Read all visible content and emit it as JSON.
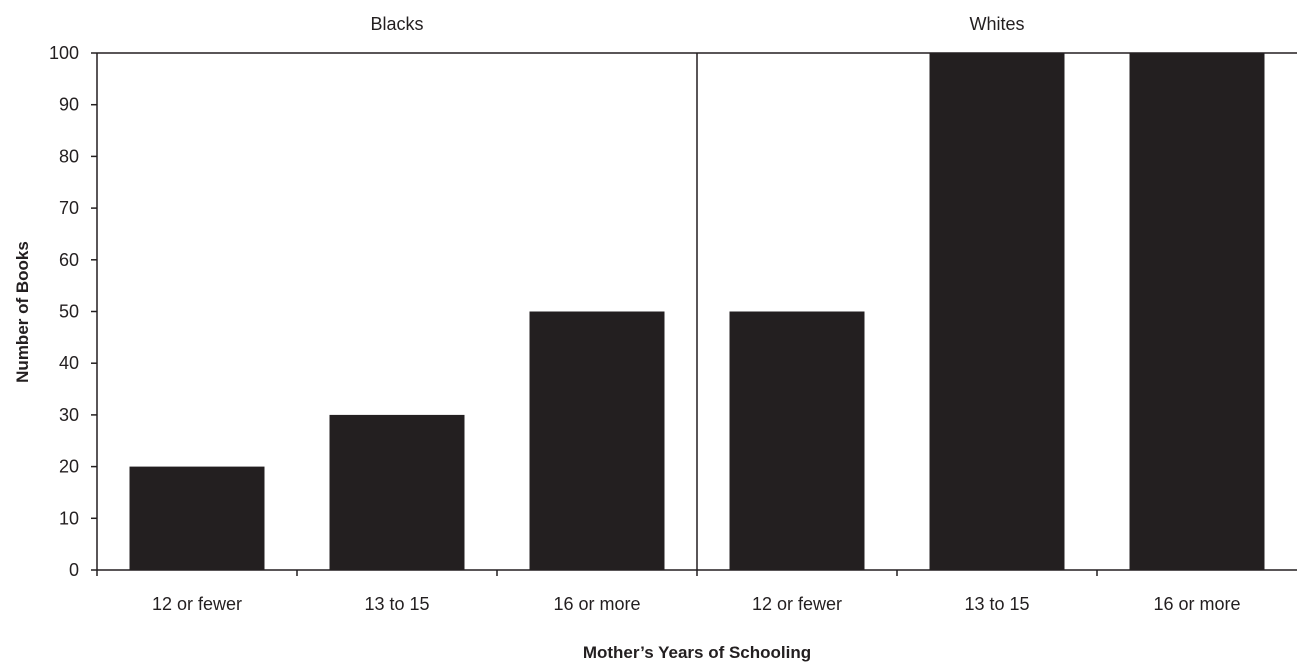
{
  "chart_data": {
    "type": "bar",
    "xlabel": "Mother’s Years of Schooling",
    "ylabel": "Number of Books",
    "ylim": [
      0,
      100
    ],
    "yticks": [
      0,
      10,
      20,
      30,
      40,
      50,
      60,
      70,
      80,
      90,
      100
    ],
    "grid": false,
    "legend": "none",
    "bar_color": "#231f20",
    "panels": [
      {
        "title": "Blacks",
        "categories": [
          "12 or fewer",
          "13 to 15",
          "16 or more"
        ],
        "values": [
          20,
          30,
          50
        ]
      },
      {
        "title": "Whites",
        "categories": [
          "12 or fewer",
          "13 to 15",
          "16 or more"
        ],
        "values": [
          50,
          100,
          100
        ]
      }
    ]
  }
}
